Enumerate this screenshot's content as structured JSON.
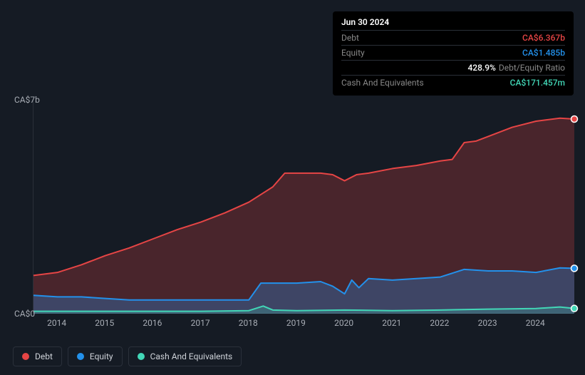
{
  "colors": {
    "debt": "#e64545",
    "equity": "#2391eb",
    "cash": "#42d7b7",
    "debt_fill": "rgba(230,69,69,0.25)",
    "equity_fill": "rgba(35,145,235,0.30)",
    "cash_fill": "rgba(66,215,183,0.22)",
    "bg": "#151b24",
    "label": "#a8adb5",
    "muted": "#888"
  },
  "chart": {
    "type": "area",
    "x": {
      "min": 2013.5,
      "max": 2024.8,
      "ticks": [
        2014,
        2015,
        2016,
        2017,
        2018,
        2019,
        2020,
        2021,
        2022,
        2023,
        2024
      ]
    },
    "y": {
      "min": 0,
      "max": 7,
      "ticks": [
        {
          "v": 0,
          "label": "CA$0"
        },
        {
          "v": 7,
          "label": "CA$7b"
        }
      ]
    },
    "series": {
      "debt": {
        "label": "Debt",
        "points": [
          [
            2013.5,
            1.25
          ],
          [
            2014,
            1.35
          ],
          [
            2014.5,
            1.6
          ],
          [
            2015,
            1.9
          ],
          [
            2015.5,
            2.15
          ],
          [
            2016,
            2.45
          ],
          [
            2016.5,
            2.75
          ],
          [
            2017,
            3.0
          ],
          [
            2017.5,
            3.3
          ],
          [
            2018,
            3.65
          ],
          [
            2018.5,
            4.15
          ],
          [
            2018.75,
            4.6
          ],
          [
            2019,
            4.6
          ],
          [
            2019.5,
            4.6
          ],
          [
            2019.75,
            4.55
          ],
          [
            2020,
            4.35
          ],
          [
            2020.25,
            4.55
          ],
          [
            2020.5,
            4.6
          ],
          [
            2021,
            4.75
          ],
          [
            2021.5,
            4.85
          ],
          [
            2022,
            5.0
          ],
          [
            2022.25,
            5.05
          ],
          [
            2022.5,
            5.6
          ],
          [
            2022.75,
            5.65
          ],
          [
            2023,
            5.8
          ],
          [
            2023.5,
            6.1
          ],
          [
            2024,
            6.3
          ],
          [
            2024.5,
            6.4
          ],
          [
            2024.8,
            6.37
          ]
        ]
      },
      "equity": {
        "label": "Equity",
        "points": [
          [
            2013.5,
            0.6
          ],
          [
            2014,
            0.55
          ],
          [
            2014.5,
            0.55
          ],
          [
            2015,
            0.5
          ],
          [
            2015.5,
            0.45
          ],
          [
            2016,
            0.45
          ],
          [
            2016.5,
            0.45
          ],
          [
            2017,
            0.45
          ],
          [
            2017.5,
            0.45
          ],
          [
            2018,
            0.45
          ],
          [
            2018.25,
            1.0
          ],
          [
            2018.5,
            1.0
          ],
          [
            2019,
            1.0
          ],
          [
            2019.5,
            1.05
          ],
          [
            2019.75,
            0.9
          ],
          [
            2020,
            0.65
          ],
          [
            2020.15,
            1.1
          ],
          [
            2020.3,
            0.85
          ],
          [
            2020.5,
            1.15
          ],
          [
            2021,
            1.1
          ],
          [
            2021.5,
            1.15
          ],
          [
            2022,
            1.2
          ],
          [
            2022.5,
            1.45
          ],
          [
            2023,
            1.4
          ],
          [
            2023.5,
            1.4
          ],
          [
            2024,
            1.35
          ],
          [
            2024.5,
            1.5
          ],
          [
            2024.8,
            1.485
          ]
        ]
      },
      "cash": {
        "label": "Cash And Equivalents",
        "points": [
          [
            2013.5,
            0.08
          ],
          [
            2014,
            0.08
          ],
          [
            2015,
            0.08
          ],
          [
            2016,
            0.08
          ],
          [
            2017,
            0.08
          ],
          [
            2018,
            0.1
          ],
          [
            2018.3,
            0.25
          ],
          [
            2018.5,
            0.12
          ],
          [
            2019,
            0.1
          ],
          [
            2020,
            0.12
          ],
          [
            2021,
            0.1
          ],
          [
            2022,
            0.12
          ],
          [
            2023,
            0.15
          ],
          [
            2024,
            0.17
          ],
          [
            2024.5,
            0.22
          ],
          [
            2024.8,
            0.171
          ]
        ]
      }
    },
    "highlight_x": 2024.8,
    "markers": [
      {
        "series": "debt",
        "x": 2024.8,
        "y": 6.37
      },
      {
        "series": "equity",
        "x": 2024.8,
        "y": 1.485
      },
      {
        "series": "cash",
        "x": 2024.8,
        "y": 0.171
      }
    ]
  },
  "tooltip": {
    "date": "Jun 30 2024",
    "rows": [
      {
        "label": "Debt",
        "value": "CA$6.367b",
        "color": "debt"
      },
      {
        "label": "Equity",
        "value": "CA$1.485b",
        "color": "equity"
      },
      {
        "label": "",
        "value": "428.9%",
        "suffix": "Debt/Equity Ratio",
        "color": "white"
      },
      {
        "label": "Cash And Equivalents",
        "value": "CA$171.457m",
        "color": "cash"
      }
    ]
  },
  "legend": [
    {
      "key": "debt",
      "label": "Debt"
    },
    {
      "key": "equity",
      "label": "Equity"
    },
    {
      "key": "cash",
      "label": "Cash And Equivalents"
    }
  ]
}
